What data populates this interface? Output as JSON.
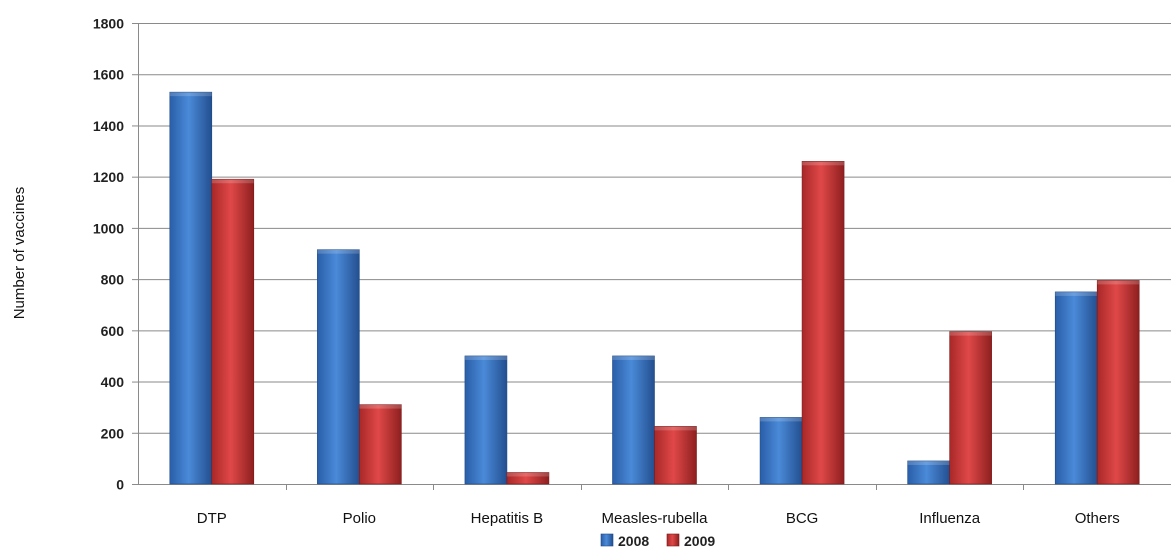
{
  "chart_data": {
    "type": "bar",
    "title": "",
    "xlabel": "",
    "ylabel": "Number of vaccines",
    "categories": [
      "DTP",
      "Polio",
      "Hepatitis B",
      "Measles-rubella",
      "BCG",
      "Influenza",
      "Others"
    ],
    "series": [
      {
        "name": "2008",
        "values": [
          1530,
          915,
          500,
          500,
          260,
          90,
          750
        ],
        "color": "#3c78c8"
      },
      {
        "name": "2009",
        "values": [
          1190,
          310,
          45,
          225,
          1260,
          595,
          795
        ],
        "color": "#d23c3c"
      }
    ],
    "ylim": [
      0,
      1800
    ],
    "yticks": [
      0,
      200,
      400,
      600,
      800,
      1000,
      1200,
      1400,
      1600,
      1800
    ],
    "grid": true,
    "legend": "bottom-center"
  }
}
